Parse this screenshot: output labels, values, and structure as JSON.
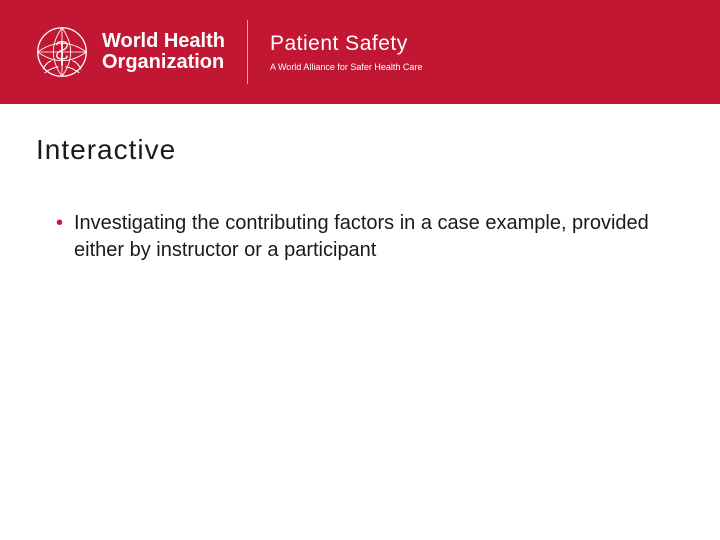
{
  "colors": {
    "band": "#c21733",
    "white": "#ffffff",
    "title": "#1a1a1a",
    "body": "#1a1a1a",
    "bullet": "#c21733",
    "divider": "rgba(255,255,255,0.6)"
  },
  "header": {
    "who_line1": "World Health",
    "who_line2": "Organization",
    "who_fontsize": 20,
    "ps_title": "Patient Safety",
    "ps_title_fontsize": 21,
    "ps_sub": "A World Alliance for Safer Health Care",
    "ps_sub_fontsize": 9
  },
  "slide": {
    "title": "Interactive",
    "title_fontsize": 28,
    "bullets": [
      "Investigating the contributing factors in a case example, provided either by instructor or a participant"
    ],
    "bullet_fontsize": 20
  }
}
